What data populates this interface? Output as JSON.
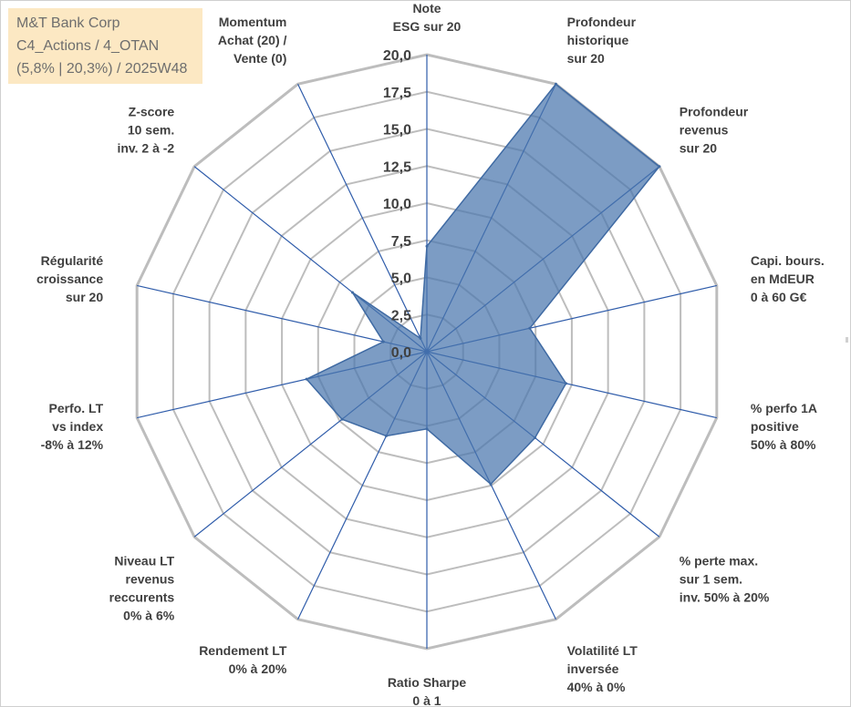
{
  "header": {
    "line1": "M&T Bank Corp",
    "line2": "C4_Actions / 4_OTAN",
    "line3": "(5,8% | 20,3%) / 2025W48"
  },
  "chart_data": {
    "type": "radar",
    "title": "",
    "rmin": 0,
    "rmax": 20,
    "ticks": [
      "0,0",
      "2,5",
      "5,0",
      "7,5",
      "10,0",
      "12,5",
      "15,0",
      "17,5",
      "20,0"
    ],
    "grid": true,
    "axes": [
      [
        "Note",
        "ESG sur 20"
      ],
      [
        "Profondeur",
        "historique",
        "sur 20"
      ],
      [
        "Profondeur",
        "revenus",
        "sur 20"
      ],
      [
        "Capi. bours.",
        "en MdEUR",
        "0 à 60 G€"
      ],
      [
        "% perfo 1A",
        "positive",
        "50% à 80%"
      ],
      [
        "% perte max.",
        "sur 1 sem.",
        "inv. 50% à 20%"
      ],
      [
        "Volatilité LT",
        "inversée",
        "40% à 0%"
      ],
      [
        "Ratio Sharpe",
        "0 à 1"
      ],
      [
        "Rendement LT",
        "0% à 20%"
      ],
      [
        "Niveau LT",
        "revenus",
        "reccurents",
        "0% à 6%"
      ],
      [
        "Perfo. LT",
        "vs index",
        "-8% à 12%"
      ],
      [
        "Régularité",
        "croissance",
        "sur 20"
      ],
      [
        "Z-score",
        "10 sem.",
        "inv. 2 à -2"
      ],
      [
        "Momentum",
        "Achat (20) /",
        "Vente (0)"
      ]
    ],
    "series": [
      {
        "values": [
          7.1,
          20.0,
          20.0,
          7.1,
          9.6,
          9.3,
          9.9,
          5.2,
          6.3,
          7.3,
          8.3,
          3.0,
          6.4,
          1.0
        ]
      }
    ],
    "colors": {
      "fill": "#4a76ad",
      "fill_opacity": 0.72,
      "stroke": "#3f6aa3",
      "spoke": "#2f5caa",
      "grid": "#bdbdbd",
      "title_bg": "#fce8c3"
    }
  }
}
